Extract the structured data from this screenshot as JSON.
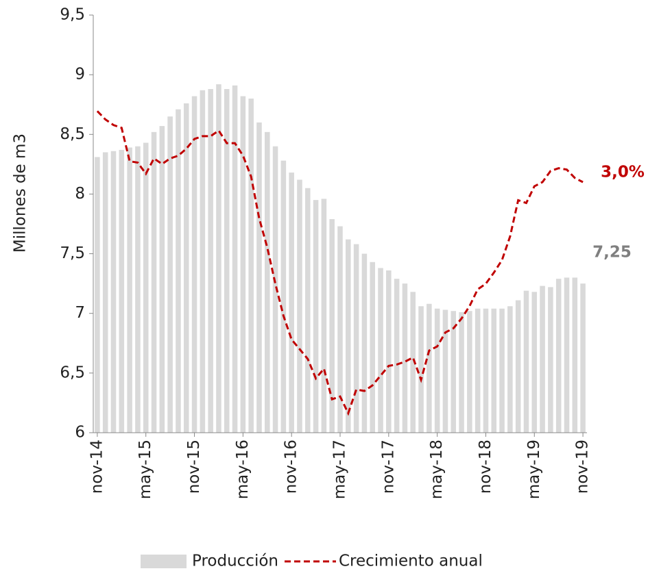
{
  "chart_data": {
    "type": "bar-line",
    "y_label": "Millones de m3",
    "categories": [
      "nov-14",
      null,
      null,
      null,
      null,
      null,
      "may-15",
      null,
      null,
      null,
      null,
      null,
      "nov-15",
      null,
      null,
      null,
      null,
      null,
      "may-16",
      null,
      null,
      null,
      null,
      null,
      "nov-16",
      null,
      null,
      null,
      null,
      null,
      "may-17",
      null,
      null,
      null,
      null,
      null,
      "nov-17",
      null,
      null,
      null,
      null,
      null,
      "may-18",
      null,
      null,
      null,
      null,
      null,
      "nov-18",
      null,
      null,
      null,
      null,
      null,
      "may-19",
      null,
      null,
      null,
      null,
      null,
      "nov-19"
    ],
    "series": [
      {
        "name": "Producción",
        "type": "bar",
        "color": "#d9d9d9",
        "values": [
          8.31,
          8.35,
          8.36,
          8.37,
          8.39,
          8.4,
          8.43,
          8.52,
          8.57,
          8.65,
          8.71,
          8.76,
          8.82,
          8.87,
          8.88,
          8.92,
          8.88,
          8.91,
          8.82,
          8.8,
          8.6,
          8.52,
          8.4,
          8.28,
          8.18,
          8.12,
          8.05,
          7.95,
          7.96,
          7.79,
          7.73,
          7.62,
          7.58,
          7.5,
          7.43,
          7.38,
          7.36,
          7.29,
          7.25,
          7.18,
          7.06,
          7.08,
          7.04,
          7.03,
          7.02,
          7.01,
          7.02,
          7.04,
          7.04,
          7.04,
          7.04,
          7.06,
          7.11,
          7.19,
          7.18,
          7.23,
          7.22,
          7.29,
          7.3,
          7.3,
          7.25
        ],
        "value_labels": [
          null,
          null,
          null,
          null,
          null,
          null,
          null,
          null,
          null,
          null,
          null,
          null,
          null,
          null,
          null,
          null,
          null,
          null,
          null,
          null,
          null,
          null,
          null,
          null,
          null,
          null,
          null,
          null,
          null,
          null,
          null,
          null,
          null,
          null,
          null,
          null,
          null,
          null,
          null,
          null,
          null,
          null,
          null,
          null,
          null,
          null,
          null,
          null,
          null,
          null,
          null,
          null,
          null,
          null,
          null,
          null,
          null,
          null,
          null,
          null,
          "7,25"
        ],
        "label_color": "#7f7f7f"
      },
      {
        "name": "Crecimiento anual",
        "type": "line",
        "axis": "y2",
        "color": "#c00000",
        "dashed": true,
        "values": [
          8.1,
          7.5,
          7.1,
          6.9,
          4.5,
          4.4,
          3.6,
          4.7,
          4.3,
          4.7,
          4.9,
          5.4,
          6.1,
          6.3,
          6.3,
          6.7,
          5.8,
          5.8,
          4.9,
          3.4,
          0.4,
          -1.7,
          -4.3,
          -6.6,
          -8.3,
          -9.0,
          -9.7,
          -11.1,
          -10.4,
          -12.6,
          -12.4,
          -13.6,
          -11.9,
          -12.0,
          -11.6,
          -10.9,
          -10.2,
          -10.1,
          -9.9,
          -9.6,
          -11.2,
          -9.1,
          -8.8,
          -7.8,
          -7.5,
          -6.8,
          -5.9,
          -4.7,
          -4.3,
          -3.5,
          -2.6,
          -0.9,
          1.7,
          1.5,
          2.7,
          3.0,
          3.8,
          4.0,
          3.9,
          3.3,
          3.0
        ],
        "value_labels": [
          null,
          null,
          null,
          null,
          null,
          null,
          null,
          null,
          null,
          null,
          null,
          null,
          null,
          null,
          null,
          null,
          null,
          null,
          null,
          null,
          null,
          null,
          null,
          null,
          null,
          null,
          null,
          null,
          null,
          null,
          null,
          null,
          null,
          null,
          null,
          null,
          null,
          null,
          null,
          null,
          null,
          null,
          null,
          null,
          null,
          null,
          null,
          null,
          null,
          null,
          null,
          null,
          null,
          null,
          null,
          null,
          null,
          null,
          null,
          null,
          "3,0%"
        ]
      }
    ],
    "ylim": [
      6,
      9.5
    ],
    "yticks": [
      6,
      {
        "value": 6.5,
        "label": "6,5"
      },
      7,
      {
        "value": 7.5,
        "label": "7,5"
      },
      8,
      {
        "value": 8.5,
        "label": "8,5"
      },
      9,
      {
        "value": 9.5,
        "label": "9,5"
      }
    ],
    "y2lim": [
      -15,
      15
    ],
    "legend": "bottom"
  }
}
